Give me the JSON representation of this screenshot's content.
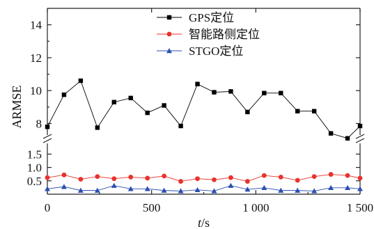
{
  "chart_data": {
    "type": "line",
    "xlabel_italic": "t",
    "xlabel_unit": "/s",
    "ylabel": "ARMSE",
    "xlim": [
      0,
      1500
    ],
    "x_ticks": [
      0,
      500,
      1000,
      1500
    ],
    "x_tick_labels": [
      "0",
      "500",
      "1 000",
      "1 500"
    ],
    "y_axis_broken": true,
    "y_lower_range": [
      0,
      1.9
    ],
    "y_upper_range": [
      7.3,
      15
    ],
    "y_lower_ticks": [
      0.5,
      1.0,
      1.5
    ],
    "y_lower_tick_labels": [
      "0.5",
      "1.0",
      "1.5"
    ],
    "y_upper_ticks": [
      8,
      10,
      12,
      14
    ],
    "y_upper_tick_labels": [
      "8",
      "10",
      "12",
      "14"
    ],
    "legend_position": "top-center",
    "x": [
      0,
      80,
      160,
      240,
      320,
      400,
      480,
      560,
      640,
      720,
      800,
      880,
      960,
      1040,
      1120,
      1200,
      1280,
      1360,
      1440,
      1500
    ],
    "series": [
      {
        "name": "GPS定位",
        "color": "#000000",
        "marker": "square",
        "values": [
          7.8,
          9.75,
          10.6,
          7.75,
          9.3,
          9.55,
          8.65,
          9.1,
          7.85,
          10.4,
          9.9,
          9.95,
          8.7,
          9.85,
          9.85,
          8.75,
          8.75,
          7.4,
          7.1,
          7.85
        ]
      },
      {
        "name": "智能路侧定位",
        "color": "#e8322c",
        "marker": "circle",
        "values": [
          0.62,
          0.72,
          0.56,
          0.66,
          0.58,
          0.64,
          0.6,
          0.68,
          0.48,
          0.58,
          0.54,
          0.62,
          0.48,
          0.7,
          0.64,
          0.52,
          0.66,
          0.74,
          0.7,
          0.6
        ]
      },
      {
        "name": "STGO定位",
        "color": "#2a4fb0",
        "marker": "triangle",
        "values": [
          0.2,
          0.28,
          0.14,
          0.14,
          0.32,
          0.2,
          0.2,
          0.14,
          0.12,
          0.16,
          0.12,
          0.32,
          0.18,
          0.24,
          0.14,
          0.14,
          0.12,
          0.24,
          0.24,
          0.2
        ]
      }
    ]
  }
}
